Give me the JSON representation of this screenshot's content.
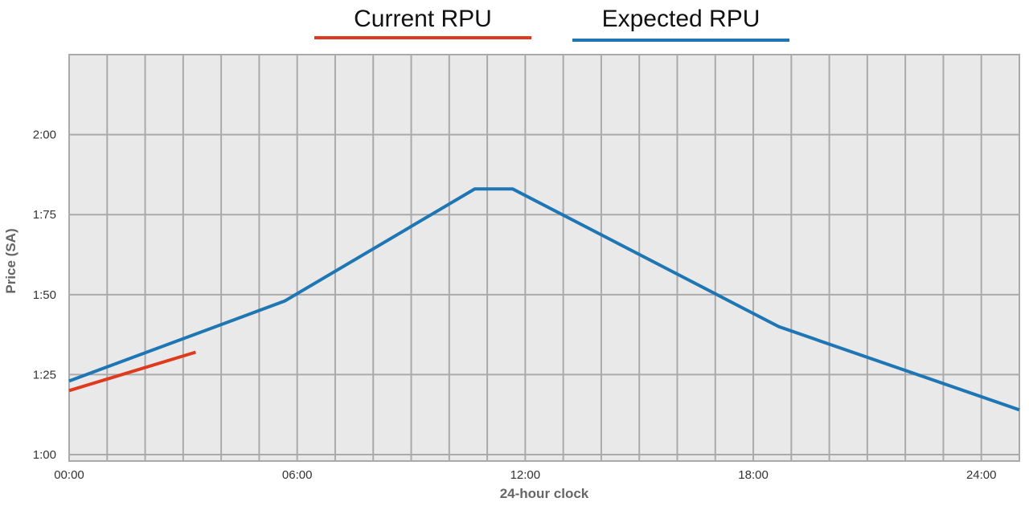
{
  "chart_data": {
    "type": "line",
    "xlabel": "24-hour clock",
    "ylabel": "Price (SA)",
    "x_ticks": [
      {
        "value": 0,
        "label": "00:00"
      },
      {
        "value": 6,
        "label": "06:00"
      },
      {
        "value": 12,
        "label": "12:00"
      },
      {
        "value": 18,
        "label": "18:00"
      },
      {
        "value": 24,
        "label": "24:00"
      }
    ],
    "y_ticks": [
      {
        "value": 1.0,
        "label": "1:00"
      },
      {
        "value": 1.25,
        "label": "1:25"
      },
      {
        "value": 1.5,
        "label": "1:50"
      },
      {
        "value": 1.75,
        "label": "1:75"
      },
      {
        "value": 2.0,
        "label": "2:00"
      }
    ],
    "xlim": [
      0,
      25
    ],
    "ylim": [
      0.98,
      2.25
    ],
    "grid": true,
    "legend_position": "top-center",
    "series": [
      {
        "name": "Current RPU",
        "color": "#e03a1e",
        "x": [
          0,
          3.33
        ],
        "y": [
          1.2,
          1.32
        ]
      },
      {
        "name": "Expected RPU",
        "color": "#1f76b4",
        "x": [
          0,
          5.67,
          10.67,
          11.67,
          18.67,
          25
        ],
        "y": [
          1.23,
          1.48,
          1.83,
          1.83,
          1.4,
          1.14
        ]
      }
    ]
  }
}
